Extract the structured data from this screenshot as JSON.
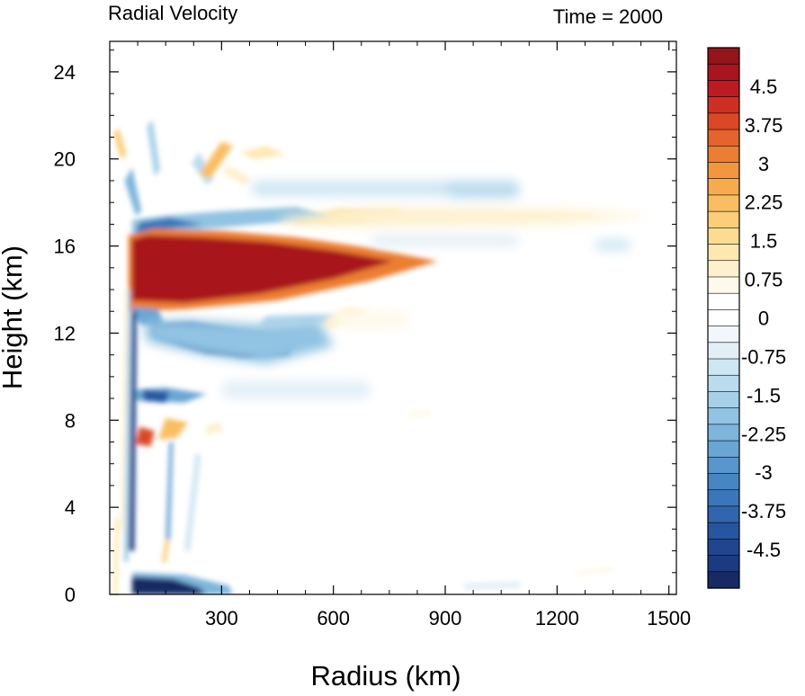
{
  "chart_data": {
    "type": "heatmap",
    "title_left": "Radial Velocity",
    "title_right": "Time = 2000",
    "xlabel": "Radius (km)",
    "ylabel": "Height (km)",
    "xlim": [
      0,
      1520
    ],
    "ylim": [
      0,
      25.4
    ],
    "x_ticks": [
      300,
      600,
      900,
      1200,
      1500
    ],
    "y_ticks": [
      0,
      4,
      8,
      12,
      16,
      20,
      24
    ],
    "colorbar": {
      "min": -5.25,
      "max": 5.25,
      "step": 0.25,
      "tick_labels": [
        "4.5",
        "3.75",
        "3",
        "2.25",
        "1.5",
        "0.75",
        "0",
        "-0.75",
        "-1.5",
        "-2.25",
        "-3",
        "-3.75",
        "-4.5"
      ]
    },
    "features": [
      {
        "name": "upper-level outflow jet",
        "r": [
          50,
          880
        ],
        "z": [
          13.2,
          16.6
        ],
        "v": 5.0
      },
      {
        "name": "boundary-layer inflow",
        "r": [
          50,
          300
        ],
        "z": [
          0,
          1.0
        ],
        "v": -5.0
      },
      {
        "name": "mid-level inflow",
        "r": [
          100,
          600
        ],
        "z": [
          10.5,
          13.0
        ],
        "v": -4.0
      },
      {
        "name": "upper inflow above jet",
        "r": [
          40,
          600
        ],
        "z": [
          16.5,
          19.5
        ],
        "v": -2.0
      },
      {
        "name": "outflow layer",
        "r": [
          450,
          1450
        ],
        "z": [
          17.0,
          18.0
        ],
        "v": 1.5
      },
      {
        "name": "mid-level band",
        "r": [
          50,
          300
        ],
        "z": [
          6.8,
          7.9
        ],
        "v": 3.0
      }
    ]
  },
  "colors": {
    "palette": [
      "#172a64",
      "#1c3a80",
      "#21468f",
      "#2756a0",
      "#2f66ae",
      "#3a76b9",
      "#4886c3",
      "#5896cc",
      "#6aa6d4",
      "#7db5db",
      "#91c3e2",
      "#a6d0e8",
      "#bbdcee",
      "#cfe6f3",
      "#e2eff7",
      "#f1f7fb",
      "#ffffff",
      "#ffffff",
      "#fef9ea",
      "#fdf1cd",
      "#fde8b0",
      "#fcdc93",
      "#fbce79",
      "#f9be62",
      "#f6ab4f",
      "#f2963f",
      "#ec7e33",
      "#e4642b",
      "#da4826",
      "#ce2f23",
      "#bc1c21",
      "#a8141f",
      "#931519"
    ]
  }
}
